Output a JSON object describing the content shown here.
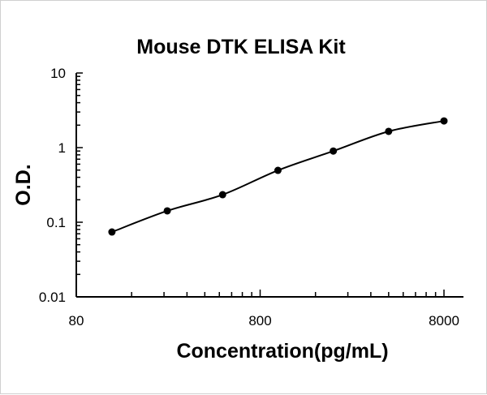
{
  "chart_data": {
    "type": "scatter",
    "title": "Mouse DTK ELISA Kit",
    "xlabel": "Concentration(pg/mL)",
    "ylabel": "O.D.",
    "x_scale": "log",
    "y_scale": "log",
    "xlim": [
      80,
      8000
    ],
    "ylim": [
      0.01,
      10
    ],
    "x_ticks": [
      "80",
      "800",
      "8000"
    ],
    "y_ticks": [
      "0.01",
      "0.1",
      "1",
      "10"
    ],
    "grid": false,
    "legend": "none",
    "fit_curve": true,
    "color": "#000000",
    "x": [
      125,
      250,
      500,
      1000,
      2000,
      4000,
      8000
    ],
    "y": [
      0.074,
      0.142,
      0.234,
      0.496,
      0.9,
      1.65,
      2.28
    ]
  }
}
